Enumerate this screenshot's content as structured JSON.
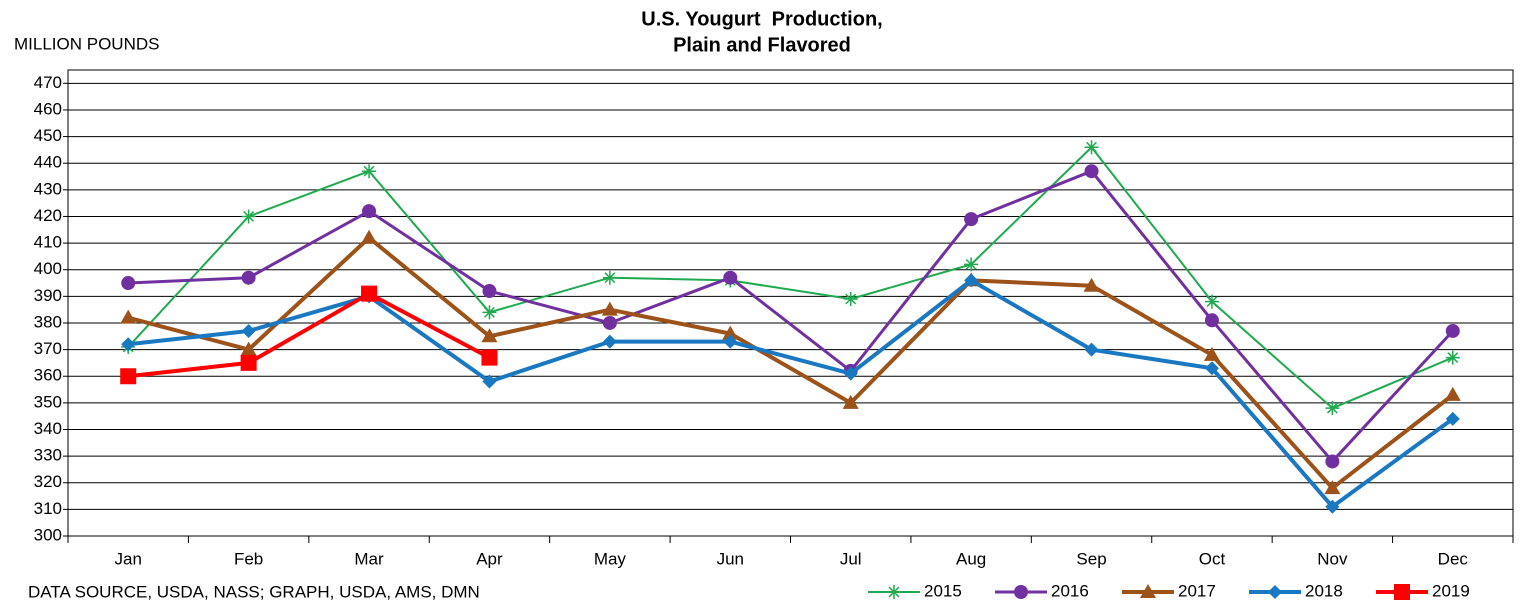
{
  "chart_data": {
    "type": "line",
    "title": [
      "U.S. Yougurt  Production,",
      "Plain and Flavored"
    ],
    "y_label": "MILLION POUNDS",
    "source": "DATA SOURCE, USDA, NASS; GRAPH, USDA, AMS, DMN",
    "categories": [
      "Jan",
      "Feb",
      "Mar",
      "Apr",
      "May",
      "Jun",
      "Jul",
      "Aug",
      "Sep",
      "Oct",
      "Nov",
      "Dec"
    ],
    "ylim": [
      300,
      475
    ],
    "yticks": [
      300,
      310,
      320,
      330,
      340,
      350,
      360,
      370,
      380,
      390,
      400,
      410,
      420,
      430,
      440,
      450,
      460,
      470
    ],
    "grid": true,
    "legend": "bottom-right",
    "series": [
      {
        "name": "2015",
        "color": "#1faa4f",
        "marker": "star",
        "line_width": 2,
        "values": [
          371,
          420,
          437,
          384,
          397,
          396,
          389,
          402,
          446,
          388,
          348,
          367
        ]
      },
      {
        "name": "2016",
        "color": "#7030a0",
        "marker": "circle",
        "line_width": 3,
        "values": [
          395,
          397,
          422,
          392,
          380,
          397,
          362,
          419,
          437,
          381,
          328,
          377
        ]
      },
      {
        "name": "2017",
        "color": "#9c5218",
        "marker": "triangle",
        "line_width": 4,
        "values": [
          382,
          370,
          412,
          375,
          385,
          376,
          350,
          396,
          394,
          368,
          318,
          353
        ]
      },
      {
        "name": "2018",
        "color": "#1a78c2",
        "marker": "diamond",
        "line_width": 4,
        "values": [
          372,
          377,
          390,
          358,
          373,
          373,
          361,
          396,
          370,
          363,
          311,
          344
        ]
      },
      {
        "name": "2019",
        "color": "#ff0000",
        "marker": "square",
        "line_width": 4,
        "values": [
          360,
          365,
          391,
          367,
          null,
          null,
          null,
          null,
          null,
          null,
          null,
          null
        ]
      }
    ]
  }
}
